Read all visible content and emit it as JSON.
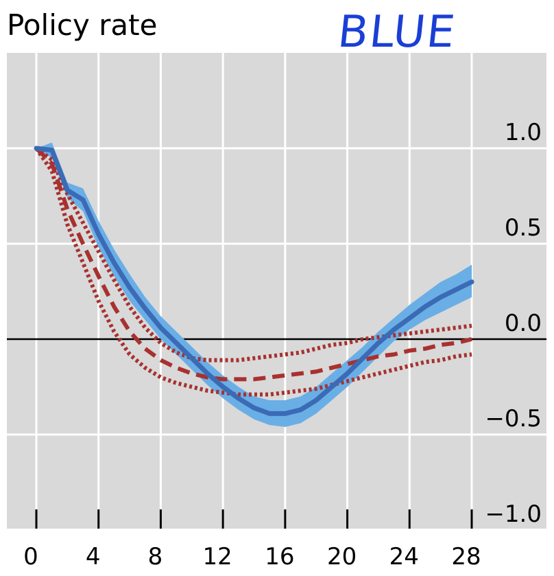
{
  "chart_data": {
    "type": "line",
    "title": "Policy rate",
    "xlabel": "",
    "ylabel": "",
    "xlim": [
      -2,
      30
    ],
    "ylim": [
      -1.0,
      1.5
    ],
    "x_ticks": [
      0,
      4,
      8,
      12,
      16,
      20,
      24,
      28
    ],
    "y_ticks": [
      -1.0,
      -0.5,
      0.0,
      0.5,
      1.0
    ],
    "y_tick_labels": [
      "−1.0",
      "−0.5",
      "0.0",
      "0.5",
      "1.0"
    ],
    "grid": true,
    "zero_line": true,
    "x": [
      0,
      1,
      2,
      3,
      4,
      5,
      6,
      7,
      8,
      9,
      10,
      11,
      12,
      13,
      14,
      15,
      16,
      17,
      18,
      19,
      20,
      21,
      22,
      23,
      24,
      25,
      26,
      27,
      28
    ],
    "series": [
      {
        "style": "solid",
        "color": "#3b6bb5",
        "band_color": "#6aaee6",
        "values": [
          1.0,
          0.99,
          0.78,
          0.73,
          0.55,
          0.4,
          0.27,
          0.16,
          0.06,
          -0.02,
          -0.1,
          -0.18,
          -0.25,
          -0.31,
          -0.36,
          -0.39,
          -0.39,
          -0.37,
          -0.32,
          -0.25,
          -0.18,
          -0.1,
          -0.02,
          0.05,
          0.11,
          0.17,
          0.22,
          0.26,
          0.3
        ],
        "band_upper": [
          1.0,
          1.03,
          0.82,
          0.79,
          0.62,
          0.47,
          0.34,
          0.22,
          0.12,
          0.04,
          -0.04,
          -0.12,
          -0.19,
          -0.25,
          -0.3,
          -0.32,
          -0.32,
          -0.3,
          -0.25,
          -0.18,
          -0.11,
          -0.04,
          0.04,
          0.11,
          0.18,
          0.24,
          0.3,
          0.34,
          0.39
        ],
        "band_lower": [
          1.0,
          0.95,
          0.74,
          0.67,
          0.48,
          0.33,
          0.2,
          0.1,
          0.0,
          -0.08,
          -0.16,
          -0.24,
          -0.31,
          -0.37,
          -0.42,
          -0.45,
          -0.46,
          -0.44,
          -0.39,
          -0.32,
          -0.25,
          -0.17,
          -0.09,
          -0.01,
          0.05,
          0.1,
          0.14,
          0.18,
          0.22
        ]
      },
      {
        "style": "dashed",
        "color": "#a8312f",
        "values": [
          1.0,
          0.92,
          0.68,
          0.5,
          0.33,
          0.17,
          0.04,
          -0.05,
          -0.11,
          -0.15,
          -0.18,
          -0.2,
          -0.21,
          -0.21,
          -0.21,
          -0.2,
          -0.19,
          -0.18,
          -0.17,
          -0.15,
          -0.13,
          -0.11,
          -0.09,
          -0.08,
          -0.06,
          -0.05,
          -0.03,
          -0.02,
          0.0
        ]
      },
      {
        "style": "dotted",
        "color": "#a8312f",
        "values": [
          1.0,
          0.94,
          0.76,
          0.61,
          0.46,
          0.31,
          0.17,
          0.06,
          -0.02,
          -0.07,
          -0.1,
          -0.11,
          -0.11,
          -0.11,
          -0.1,
          -0.09,
          -0.08,
          -0.07,
          -0.05,
          -0.03,
          -0.02,
          0.0,
          0.01,
          0.02,
          0.03,
          0.04,
          0.05,
          0.06,
          0.07
        ]
      },
      {
        "style": "dotted",
        "color": "#a8312f",
        "values": [
          1.0,
          0.88,
          0.6,
          0.4,
          0.2,
          0.04,
          -0.08,
          -0.15,
          -0.2,
          -0.23,
          -0.25,
          -0.27,
          -0.28,
          -0.29,
          -0.29,
          -0.29,
          -0.28,
          -0.27,
          -0.26,
          -0.24,
          -0.22,
          -0.2,
          -0.18,
          -0.16,
          -0.14,
          -0.12,
          -0.11,
          -0.09,
          -0.08
        ]
      }
    ]
  },
  "annotation": {
    "text": "BLUE",
    "color": "#1a3fd6"
  }
}
